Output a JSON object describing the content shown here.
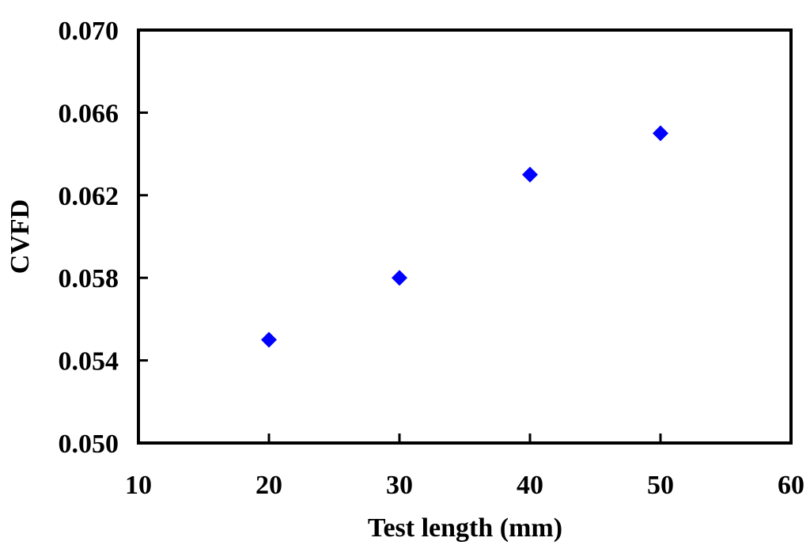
{
  "chart_data": {
    "type": "scatter",
    "title": "",
    "xlabel": "Test length (mm)",
    "ylabel": "CVFD",
    "xlim": [
      10,
      60
    ],
    "ylim": [
      0.05,
      0.07
    ],
    "xticks": [
      "10",
      "20",
      "30",
      "40",
      "50",
      "60"
    ],
    "yticks": [
      "0.050",
      "0.054",
      "0.058",
      "0.062",
      "0.066",
      "0.070"
    ],
    "grid": false,
    "legend": "none",
    "series": [
      {
        "marker": "diamond",
        "color": "#0000ff",
        "x": [
          20,
          30,
          40,
          50
        ],
        "y": [
          0.055,
          0.058,
          0.063,
          0.065
        ]
      }
    ]
  }
}
